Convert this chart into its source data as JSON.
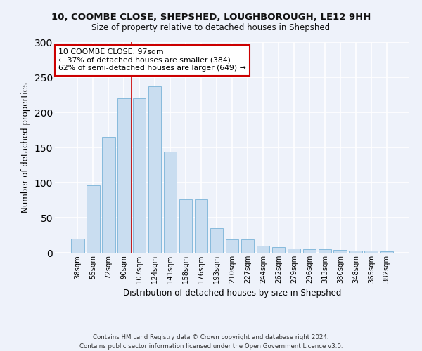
{
  "title1": "10, COOMBE CLOSE, SHEPSHED, LOUGHBOROUGH, LE12 9HH",
  "title2": "Size of property relative to detached houses in Shepshed",
  "xlabel": "Distribution of detached houses by size in Shepshed",
  "ylabel": "Number of detached properties",
  "categories": [
    "38sqm",
    "55sqm",
    "72sqm",
    "90sqm",
    "107sqm",
    "124sqm",
    "141sqm",
    "158sqm",
    "176sqm",
    "193sqm",
    "210sqm",
    "227sqm",
    "244sqm",
    "262sqm",
    "279sqm",
    "296sqm",
    "313sqm",
    "330sqm",
    "348sqm",
    "365sqm",
    "382sqm"
  ],
  "values": [
    20,
    96,
    165,
    220,
    220,
    237,
    144,
    76,
    76,
    35,
    19,
    19,
    10,
    8,
    6,
    5,
    5,
    4,
    3,
    3,
    2
  ],
  "bar_color": "#c9ddf0",
  "bar_edge_color": "#7ab3d8",
  "annotation_box_text": "10 COOMBE CLOSE: 97sqm\n← 37% of detached houses are smaller (384)\n62% of semi-detached houses are larger (649) →",
  "annotation_box_color": "#ffffff",
  "annotation_box_edge_color": "#cc0000",
  "vline_color": "#cc0000",
  "background_color": "#eef2fa",
  "grid_color": "#ffffff",
  "footer": "Contains HM Land Registry data © Crown copyright and database right 2024.\nContains public sector information licensed under the Open Government Licence v3.0.",
  "ylim": [
    0,
    300
  ],
  "yticks": [
    0,
    50,
    100,
    150,
    200,
    250,
    300
  ]
}
